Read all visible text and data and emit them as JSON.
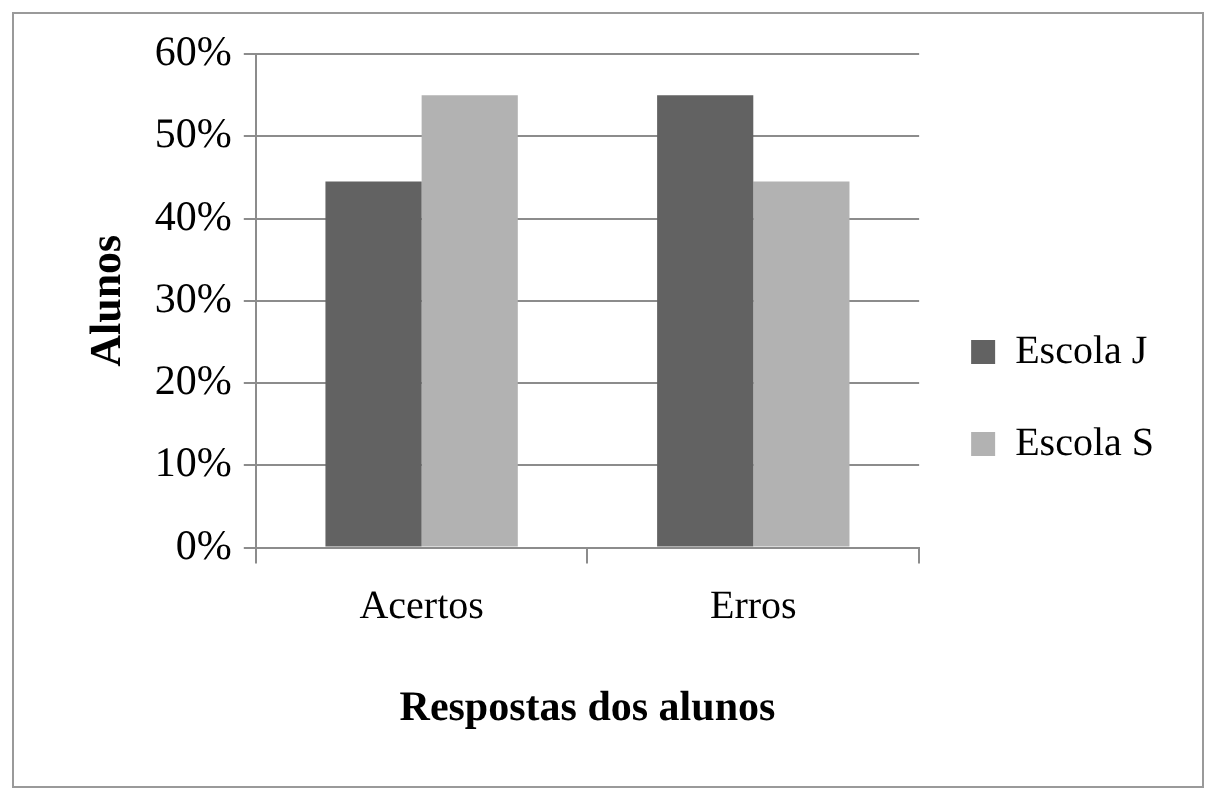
{
  "chart_data": {
    "type": "bar",
    "xlabel": "Respostas dos alunos",
    "ylabel": "Alunos",
    "categories": [
      "Acertos",
      "Erros"
    ],
    "series": [
      {
        "name": "Escola J",
        "color": "#626262",
        "values": [
          44.5,
          55
        ]
      },
      {
        "name": "Escola S",
        "color": "#b2b2b2",
        "values": [
          55,
          44.5
        ]
      }
    ],
    "ylim": [
      0,
      60
    ],
    "yticks": [
      {
        "value": 0,
        "label": "0%"
      },
      {
        "value": 10,
        "label": "10%"
      },
      {
        "value": 20,
        "label": "20%"
      },
      {
        "value": 30,
        "label": "30%"
      },
      {
        "value": 40,
        "label": "40%"
      },
      {
        "value": 50,
        "label": "50%"
      },
      {
        "value": 60,
        "label": "60%"
      }
    ],
    "grid": "y",
    "legend": "right"
  }
}
